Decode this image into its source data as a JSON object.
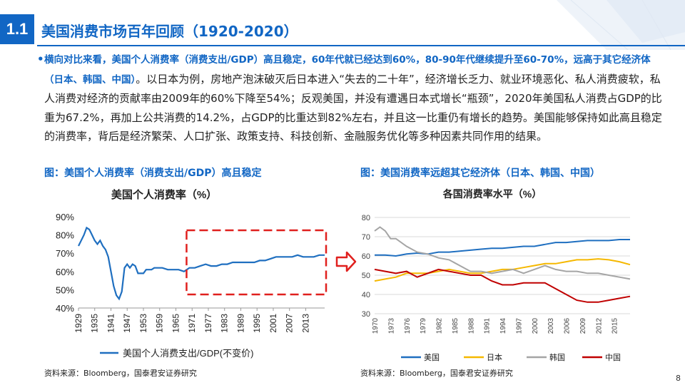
{
  "header": {
    "section_number": "1.1",
    "title": "美国消费市场百年回顾（1920-2020）"
  },
  "body": {
    "highlight": "横向对比来看，美国个人消费率（消费支出/GDP）高且稳定，60年代就已经达到60%，80-90年代继续提升至60-70%，远高于其它经济体（日本、韩国、中国）",
    "text": "。以日本为例，房地产泡沫破灭后日本进入“失去的二十年”，经济增长乏力、就业环境恶化、私人消费疲软，私人消费对经济的贡献率由2009年的60%下降至54%；反观美国，并没有遭遇日本式增长“瓶颈”，2020年美国私人消费占GDP的比重为67.2%，再加上公共消费的14.2%，占GDP的比重达到82%左右，并且这一比重仍有增长的趋势。美国能够保持如此高且稳定的消费率，背后是经济繁荣、人口扩张、政策支持、科技创新、金融服务优化等多种因素共同作用的结果。"
  },
  "figures": {
    "left_caption": "图：美国个人消费率（消费支出/GDP）高且稳定",
    "right_caption": "图：美国消费率远超其它经济体（日本、韩国、中国）",
    "left_source": "资料来源：Bloomberg，国泰君安证券研究",
    "right_source": "资料来源：Bloomberg，国泰君安证券研究"
  },
  "page_number": "8",
  "colors": {
    "brand": "#1166c4",
    "usa": "#1f6fc0",
    "japan": "#f5b800",
    "korea": "#a5a5a5",
    "china": "#c00000",
    "highlight_box": "#e0201e"
  },
  "chart_data": [
    {
      "type": "line",
      "title": "美国个人消费率（%）",
      "ylim": [
        40,
        90
      ],
      "yticks": [
        "40%",
        "50%",
        "60%",
        "70%",
        "80%",
        "90%"
      ],
      "xticks": [
        "1929",
        "1935",
        "1941",
        "1947",
        "1953",
        "1959",
        "1965",
        "1971",
        "1977",
        "1983",
        "1989",
        "1995",
        "2001",
        "2007",
        "2013"
      ],
      "xrange": [
        1929,
        2020
      ],
      "legend": "bottom",
      "series": [
        {
          "name": "美国个人消费支出/GDP(不变价)",
          "x": [
            1929,
            1930,
            1931,
            1932,
            1933,
            1934,
            1935,
            1936,
            1937,
            1938,
            1939,
            1940,
            1941,
            1942,
            1943,
            1944,
            1945,
            1946,
            1947,
            1948,
            1949,
            1950,
            1951,
            1952,
            1953,
            1954,
            1955,
            1956,
            1957,
            1958,
            1959,
            1960,
            1962,
            1964,
            1966,
            1968,
            1970,
            1972,
            1974,
            1976,
            1978,
            1980,
            1982,
            1984,
            1986,
            1988,
            1990,
            1992,
            1994,
            1996,
            1998,
            2000,
            2002,
            2004,
            2006,
            2008,
            2010,
            2012,
            2014,
            2016,
            2018,
            2020
          ],
          "values": [
            74,
            77,
            80,
            84,
            83,
            80,
            77,
            75,
            77,
            74,
            72,
            68,
            60,
            52,
            47,
            45,
            49,
            62,
            64,
            62,
            64,
            63,
            59,
            59,
            59,
            61,
            61,
            61,
            62,
            62,
            62,
            62,
            61,
            61,
            61,
            60,
            62,
            62,
            63,
            64,
            63,
            63,
            64,
            64,
            65,
            65,
            65,
            65,
            65,
            66,
            66,
            67,
            68,
            68,
            68,
            68,
            69,
            68,
            68,
            68,
            69,
            69
          ]
        }
      ],
      "highlight_region": "1970-2020"
    },
    {
      "type": "line",
      "title": "各国消费率水平（%）",
      "ylim": [
        30,
        80
      ],
      "yticks": [
        "30",
        "40",
        "50",
        "60",
        "70",
        "80"
      ],
      "xticks": [
        "1970",
        "1973",
        "1976",
        "1979",
        "1982",
        "1985",
        "1988",
        "1991",
        "1994",
        "1997",
        "2000",
        "2003",
        "2006",
        "2009",
        "2012",
        "2015"
      ],
      "xrange": [
        1970,
        2018
      ],
      "legend": "bottom",
      "series": [
        {
          "name": "美国",
          "x": [
            1970,
            1972,
            1974,
            1976,
            1978,
            1980,
            1982,
            1984,
            1986,
            1988,
            1990,
            1992,
            1994,
            1996,
            1998,
            2000,
            2002,
            2004,
            2006,
            2008,
            2010,
            2012,
            2014,
            2016,
            2018
          ],
          "values": [
            60.5,
            60.5,
            60,
            61,
            61.5,
            61,
            62,
            62,
            62.5,
            63,
            63.5,
            64,
            64,
            64.5,
            65,
            65,
            66,
            67,
            67,
            67.5,
            68,
            68,
            68,
            68.5,
            68.5
          ]
        },
        {
          "name": "日本",
          "x": [
            1970,
            1972,
            1974,
            1976,
            1978,
            1980,
            1982,
            1984,
            1986,
            1988,
            1990,
            1992,
            1994,
            1996,
            1998,
            2000,
            2002,
            2004,
            2006,
            2008,
            2010,
            2012,
            2014,
            2016,
            2018
          ],
          "values": [
            47,
            48,
            49,
            51,
            51,
            51,
            52,
            53,
            52,
            51,
            51,
            52,
            53,
            53,
            54,
            55,
            56,
            56,
            57,
            58,
            58,
            58.5,
            58,
            57,
            55.5
          ]
        },
        {
          "name": "韩国",
          "x": [
            1970,
            1971,
            1972,
            1973,
            1974,
            1976,
            1978,
            1980,
            1982,
            1984,
            1986,
            1988,
            1990,
            1992,
            1994,
            1996,
            1998,
            2000,
            2002,
            2004,
            2006,
            2008,
            2010,
            2012,
            2014,
            2016,
            2018
          ],
          "values": [
            73,
            75,
            73,
            69,
            69,
            65,
            62,
            61,
            59,
            58,
            55,
            52,
            52,
            51,
            52,
            53,
            51,
            53,
            55,
            53,
            52,
            52,
            51,
            51,
            50,
            49,
            48
          ]
        },
        {
          "name": "中国",
          "x": [
            1970,
            1972,
            1974,
            1976,
            1978,
            1980,
            1982,
            1984,
            1986,
            1988,
            1990,
            1992,
            1994,
            1996,
            1998,
            2000,
            2002,
            2004,
            2006,
            2008,
            2010,
            2012,
            2014,
            2016,
            2018
          ],
          "values": [
            53,
            52,
            51,
            52,
            49,
            51,
            53,
            52,
            51,
            50,
            50,
            47,
            45,
            45,
            46,
            46,
            46,
            43,
            40,
            37,
            36,
            36,
            37,
            38,
            39
          ]
        }
      ]
    }
  ]
}
